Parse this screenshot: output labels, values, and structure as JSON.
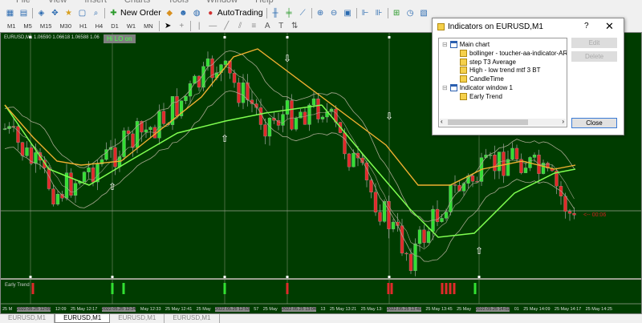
{
  "menu": [
    "File",
    "View",
    "Insert",
    "Charts",
    "Tools",
    "Window",
    "Help"
  ],
  "toolbar": {
    "new_order": "New Order",
    "autotrading": "AutoTrading"
  },
  "timeframes": [
    "M1",
    "M5",
    "M15",
    "M30",
    "H1",
    "H4",
    "D1",
    "W1",
    "MN"
  ],
  "chart": {
    "symbol_info": "EURUSD,M1  1.06590 1.06618 1.06588 1.06",
    "hilo_label": "Hi LO on",
    "subwindow_label": "Early Trend",
    "countdown": "<-- 00:06",
    "colors": {
      "background": "#003c00",
      "bull": "#32e032",
      "bear": "#e02a2a",
      "t3": "#f0b030",
      "trend": "#7fff50",
      "bands": "#a8a890"
    },
    "time_labels": [
      {
        "text": "25 M",
        "hl": false
      },
      {
        "text": "2022.05.25 12:05",
        "hl": true
      },
      {
        "text": "12:09",
        "hl": false
      },
      {
        "text": "25 May 12:17",
        "hl": false
      },
      {
        "text": "2022.05.25 12:24",
        "hl": true
      },
      {
        "text": "May 12:33",
        "hl": false
      },
      {
        "text": "25 May 12:41",
        "hl": false
      },
      {
        "text": "25 May",
        "hl": false
      },
      {
        "text": "2022.05.25 12:53",
        "hl": true
      },
      {
        "text": "57",
        "hl": false
      },
      {
        "text": "25 May",
        "hl": false
      },
      {
        "text": "2022.05.25 13:04",
        "hl": true
      },
      {
        "text": "13",
        "hl": false
      },
      {
        "text": "25 May 13:21",
        "hl": false
      },
      {
        "text": "25 May 13:",
        "hl": false
      },
      {
        "text": "2022.05.25 13:40",
        "hl": true
      },
      {
        "text": "25 May 13:45",
        "hl": false
      },
      {
        "text": "25 May",
        "hl": false
      },
      {
        "text": "2022.05.25 14:02",
        "hl": true
      },
      {
        "text": "01",
        "hl": false
      },
      {
        "text": "25 May 14:09",
        "hl": false
      },
      {
        "text": "25 May 14:17",
        "hl": false
      },
      {
        "text": "25 May 14:25",
        "hl": false
      }
    ]
  },
  "tabs": [
    "EURUSD,M1",
    "EURUSD,M1",
    "EURUSD,M1",
    "EURUSD,M1"
  ],
  "active_tab": 1,
  "dialog": {
    "title": "Indicators on EURUSD,M1",
    "help": "?",
    "close_x": "✕",
    "tree": [
      {
        "label": "Main chart",
        "level": 0,
        "type": "window"
      },
      {
        "label": "bollinger - toucher-aa-indicator-ARROW",
        "level": 1,
        "type": "indicator"
      },
      {
        "label": "step T3 Average",
        "level": 1,
        "type": "indicator"
      },
      {
        "label": "High - low trend mtf 3 BT",
        "level": 1,
        "type": "indicator"
      },
      {
        "label": "CandleTime",
        "level": 1,
        "type": "indicator"
      },
      {
        "label": "Indicator window 1",
        "level": 0,
        "type": "window"
      },
      {
        "label": "Early Trend",
        "level": 1,
        "type": "indicator"
      }
    ],
    "edit": "Edit",
    "delete": "Delete",
    "close": "Close"
  }
}
